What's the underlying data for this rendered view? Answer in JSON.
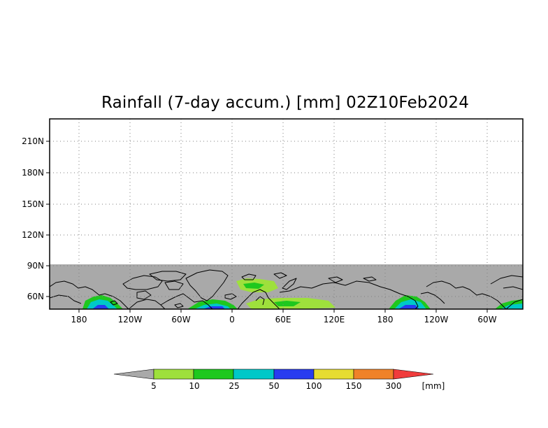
{
  "title": "Rainfall (7-day accum.) [mm] 02Z10Feb2024",
  "map": {
    "y_ticks": [
      "210N",
      "180N",
      "150N",
      "120N",
      "90N",
      "60N"
    ],
    "x_ticks": [
      "180",
      "120W",
      "60W",
      "0",
      "60E",
      "120E",
      "180",
      "120W",
      "60W"
    ],
    "no_data_color": "#a9a9a9",
    "grid": "dotted"
  },
  "colorbar": {
    "unit": "[mm]",
    "thresholds": [
      "5",
      "10",
      "25",
      "50",
      "100",
      "150",
      "300"
    ],
    "colors": [
      "#a9a9a9",
      "#9ee03c",
      "#1ec81e",
      "#00c8c8",
      "#283cf0",
      "#e6dc32",
      "#f08228",
      "#f03c3c"
    ]
  }
}
